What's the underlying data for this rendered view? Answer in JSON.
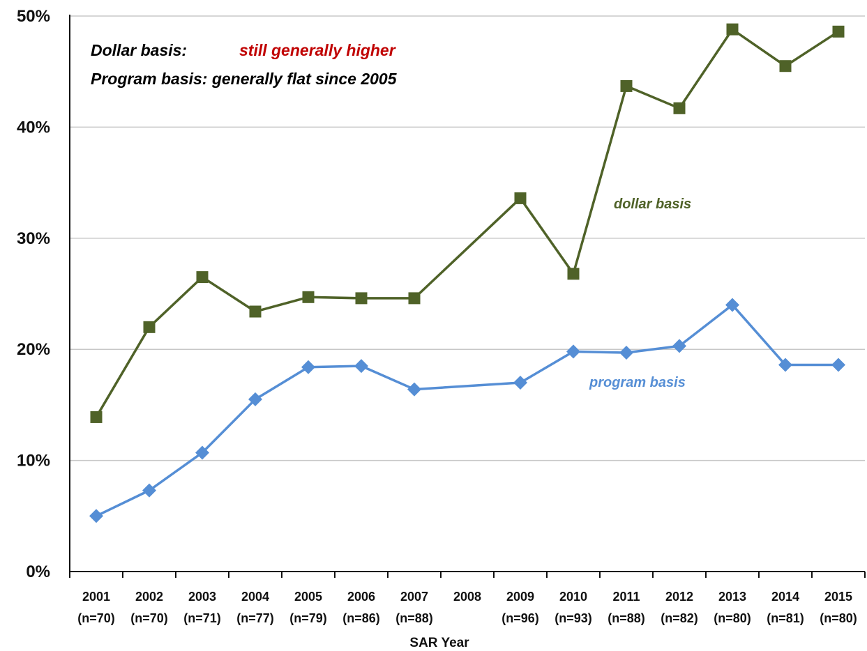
{
  "chart_data": {
    "type": "line",
    "categories": [
      "2001",
      "2002",
      "2003",
      "2004",
      "2005",
      "2006",
      "2007",
      "2008",
      "2009",
      "2010",
      "2011",
      "2012",
      "2013",
      "2014",
      "2015"
    ],
    "category_counts": [
      "(n=70)",
      "(n=70)",
      "(n=71)",
      "(n=77)",
      "(n=79)",
      "(n=86)",
      "(n=88)",
      "",
      "(n=96)",
      "(n=93)",
      "(n=88)",
      "(n=82)",
      "(n=80)",
      "(n=81)",
      "(n=80)"
    ],
    "series": [
      {
        "name": "dollar basis",
        "color": "#4f6228",
        "marker": "square",
        "values": [
          13.9,
          22.0,
          26.5,
          23.4,
          24.7,
          24.6,
          24.6,
          null,
          33.6,
          26.8,
          43.7,
          41.7,
          48.8,
          45.5,
          48.6
        ]
      },
      {
        "name": "program basis",
        "color": "#558ed5",
        "marker": "diamond",
        "values": [
          5.0,
          7.3,
          10.7,
          15.5,
          18.4,
          18.5,
          16.4,
          null,
          17.0,
          19.8,
          19.7,
          20.3,
          24.0,
          18.6,
          18.6
        ]
      }
    ],
    "y_ticks": [
      "0%",
      "10%",
      "20%",
      "30%",
      "40%",
      "50%"
    ],
    "ylim": [
      0,
      50
    ],
    "xlabel": "SAR Year",
    "ylabel": "",
    "grid": true,
    "annotations": {
      "line1_prefix": "Dollar basis:",
      "line1_value": "still generally higher",
      "line2": "Program basis: generally flat since 2005",
      "prefix_color": "#000000",
      "value_color": "#c00000"
    }
  }
}
